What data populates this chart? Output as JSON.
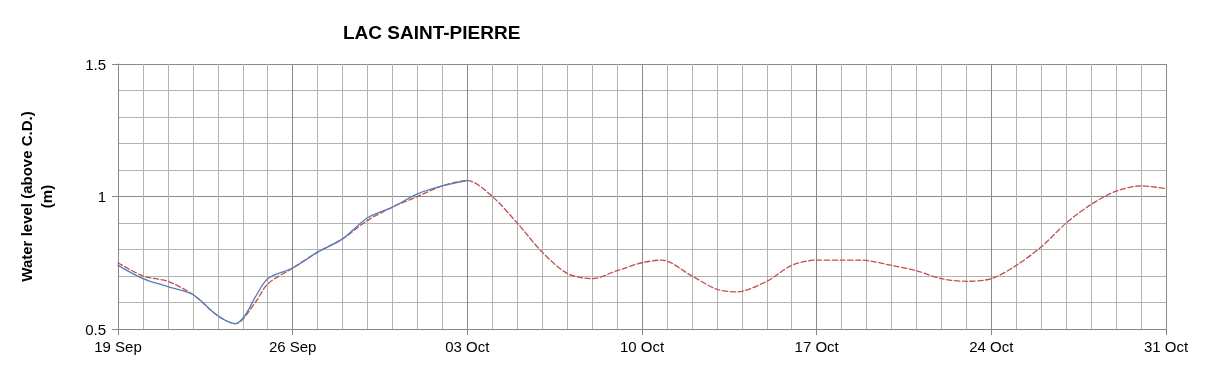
{
  "chart_data": {
    "type": "line",
    "title": "LAC SAINT-PIERRE",
    "ylabel": "Water level (above C.D.) (m)",
    "xlim": [
      "--09-19",
      "--10-31"
    ],
    "xticks": [
      {
        "value": "--09-19",
        "label": "19 Sep"
      },
      {
        "value": "--09-26",
        "label": "26 Sep"
      },
      {
        "value": "--10-03",
        "label": "03 Oct"
      },
      {
        "value": "--10-10",
        "label": "10 Oct"
      },
      {
        "value": "--10-17",
        "label": "17 Oct"
      },
      {
        "value": "--10-24",
        "label": "24 Oct"
      },
      {
        "value": "--10-31",
        "label": "31 Oct"
      }
    ],
    "ylim": [
      0.5,
      1.5
    ],
    "yticks": [
      0.5,
      1,
      1.5
    ],
    "grid": true,
    "marker": "none",
    "series": [
      {
        "color": "#c0504d",
        "line_style": "dashed",
        "x": [
          "--09-19",
          "--09-20",
          "--09-21",
          "--09-22",
          "--09-23",
          "--09-23T17:00",
          "--09-24T12:00",
          "--09-25",
          "--09-26",
          "--09-27",
          "--09-28",
          "--09-29",
          "--09-30",
          "--10-01",
          "--10-02",
          "--10-03",
          "--10-04",
          "--10-05",
          "--10-06",
          "--10-07",
          "--10-08",
          "--10-09",
          "--10-10",
          "--10-10T19:00",
          "--10-12",
          "--10-13",
          "--10-13T19:00",
          "--10-15",
          "--10-16",
          "--10-17",
          "--10-18",
          "--10-18T19:00",
          "--10-20",
          "--10-21",
          "--10-22",
          "--10-23",
          "--10-24",
          "--10-25",
          "--10-26",
          "--10-27",
          "--10-28",
          "--10-29",
          "--10-30",
          "--10-31"
        ],
        "values": [
          0.75,
          0.7,
          0.68,
          0.63,
          0.55,
          0.52,
          0.6,
          0.67,
          0.73,
          0.79,
          0.84,
          0.91,
          0.96,
          1.0,
          1.04,
          1.06,
          1.0,
          0.9,
          0.79,
          0.71,
          0.69,
          0.72,
          0.75,
          0.76,
          0.7,
          0.65,
          0.64,
          0.68,
          0.74,
          0.76,
          0.76,
          0.76,
          0.74,
          0.72,
          0.69,
          0.68,
          0.69,
          0.74,
          0.81,
          0.9,
          0.97,
          1.02,
          1.04,
          1.03
        ]
      },
      {
        "color": "#4f81bd",
        "line_style": "solid",
        "x": [
          "--09-19",
          "--09-20",
          "--09-21",
          "--09-22",
          "--09-23",
          "--09-23T17:00",
          "--09-24T02:00",
          "--09-24T12:00",
          "--09-25",
          "--09-26",
          "--09-27",
          "--09-28",
          "--09-29",
          "--09-30",
          "--10-01",
          "--10-02",
          "--10-03"
        ],
        "values": [
          0.74,
          0.69,
          0.66,
          0.63,
          0.55,
          0.52,
          0.55,
          0.62,
          0.69,
          0.73,
          0.79,
          0.84,
          0.92,
          0.96,
          1.01,
          1.04,
          1.06
        ]
      }
    ]
  }
}
